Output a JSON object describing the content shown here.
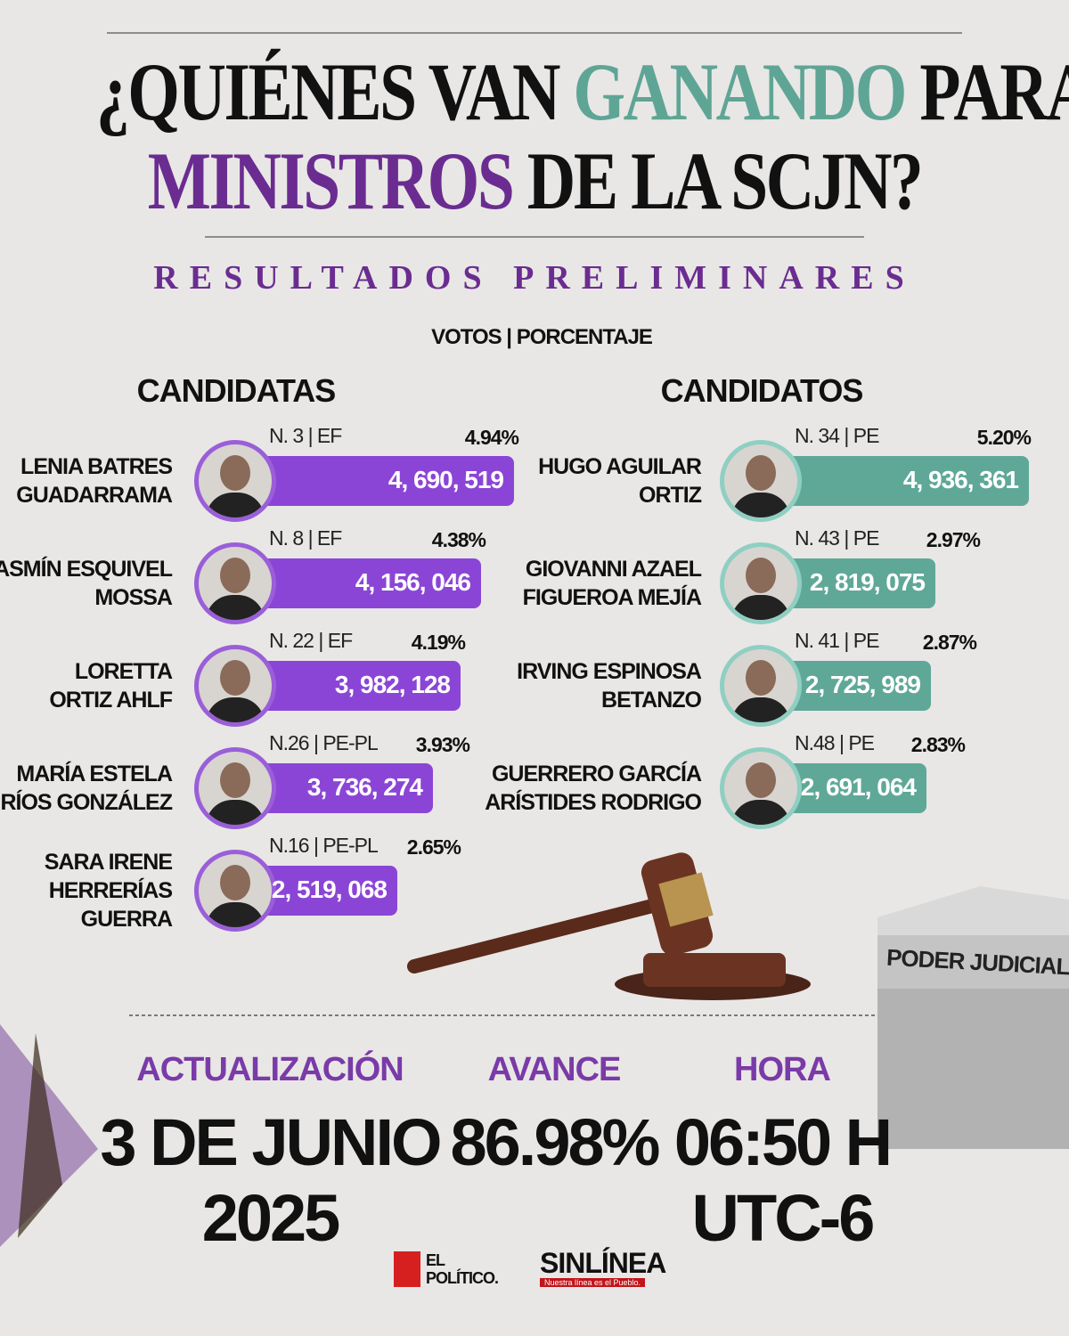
{
  "title": {
    "line1_start": "¿QUIÉNES VAN",
    "line1_highlight": "GANANDO",
    "line1_end": "PARA",
    "line2_highlight": "MINISTROS",
    "line2_end": "DE LA SCJN?"
  },
  "subtitle": "RESULTADOS PRELIMINARES",
  "legend": "VOTOS | PORCENTAJE",
  "candidatas": {
    "heading": "CANDIDATAS",
    "items": [
      {
        "name_lines": [
          "LENIA BATRES",
          "GUADARRAMA"
        ],
        "number": "N. 3 | EF",
        "percent": "4.94%",
        "votes": "4, 690, 519"
      },
      {
        "name_lines": [
          "YASMÍN ESQUIVEL",
          "MOSSA"
        ],
        "number": "N. 8 | EF",
        "percent": "4.38%",
        "votes": "4, 156, 046"
      },
      {
        "name_lines": [
          "LORETTA",
          "ORTIZ AHLF"
        ],
        "number": "N. 22 | EF",
        "percent": "4.19%",
        "votes": "3, 982, 128"
      },
      {
        "name_lines": [
          "MARÍA ESTELA",
          "RÍOS GONZÁLEZ"
        ],
        "number": "N.26 | PE-PL",
        "percent": "3.93%",
        "votes": "3, 736, 274"
      },
      {
        "name_lines": [
          "SARA IRENE",
          "HERRERÍAS",
          "GUERRA"
        ],
        "number": "N.16 | PE-PL",
        "percent": "2.65%",
        "votes": "2, 519, 068"
      }
    ]
  },
  "candidatos": {
    "heading": "CANDIDATOS",
    "items": [
      {
        "name_lines": [
          "HUGO AGUILAR",
          "ORTIZ"
        ],
        "number": "N. 34 | PE",
        "percent": "5.20%",
        "votes": "4, 936, 361"
      },
      {
        "name_lines": [
          "GIOVANNI AZAEL",
          "FIGUEROA MEJÍA"
        ],
        "number": "N. 43 | PE",
        "percent": "2.97%",
        "votes": "2, 819, 075"
      },
      {
        "name_lines": [
          "IRVING ESPINOSA",
          "BETANZO"
        ],
        "number": "N. 41 | PE",
        "percent": "2.87%",
        "votes": "2, 725, 989"
      },
      {
        "name_lines": [
          "GUERRERO GARCÍA",
          "ARÍSTIDES RODRIGO"
        ],
        "number": "N.48 | PE",
        "percent": "2.83%",
        "votes": "2, 691, 064"
      }
    ]
  },
  "ballot_box": "PODER JUDICIAL",
  "stats": [
    {
      "label": "ACTUALIZACIÓN",
      "value_lines": [
        "3 DE JUNIO",
        "2025"
      ]
    },
    {
      "label": "AVANCE",
      "value_lines": [
        "86.98%"
      ]
    },
    {
      "label": "HORA",
      "value_lines": [
        "06:50 H",
        "UTC-6"
      ]
    }
  ],
  "logos": {
    "el_politico_lines": [
      "EL",
      "POLÍTICO."
    ],
    "sinlinea": "SINLÍNEA",
    "sinlinea_tagline": "Nuestra línea es el Pueblo."
  }
}
